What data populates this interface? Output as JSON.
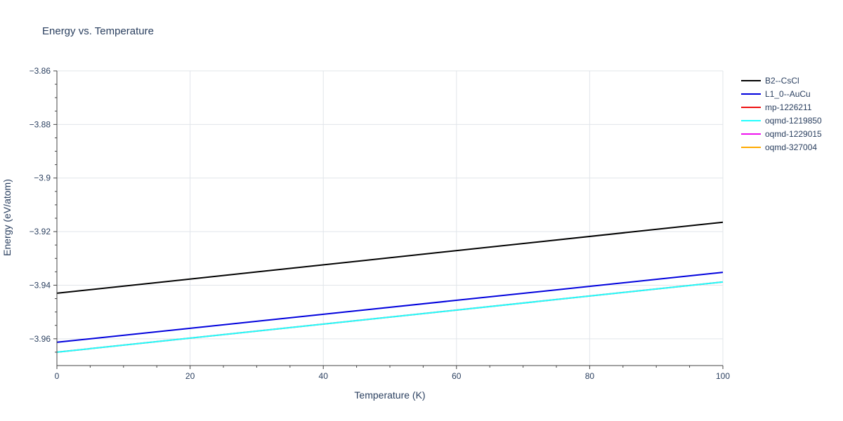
{
  "title": "Energy vs. Temperature",
  "chart_data": {
    "type": "line",
    "title": "Energy vs. Temperature",
    "xlabel": "Temperature (K)",
    "ylabel": "Energy (eV/atom)",
    "xlim": [
      0,
      100
    ],
    "ylim": [
      -3.97,
      -3.86
    ],
    "xticks": [
      0,
      20,
      40,
      60,
      80,
      100
    ],
    "xtick_labels": [
      "0",
      "20",
      "40",
      "60",
      "80",
      "100"
    ],
    "yticks": [
      -3.86,
      -3.88,
      -3.9,
      -3.92,
      -3.94,
      -3.96
    ],
    "ytick_labels": [
      "−3.86",
      "−3.88",
      "−3.9",
      "−3.92",
      "−3.94",
      "−3.96"
    ],
    "grid": true,
    "legend_position": "top-right, outside plot",
    "series": [
      {
        "name": "B2--CsCl",
        "color": "#000000",
        "x": [
          0,
          100
        ],
        "y": [
          -3.943,
          -3.9165
        ]
      },
      {
        "name": "L1_0--AuCu",
        "color": "#0000dd",
        "x": [
          0,
          100
        ],
        "y": [
          -3.9613,
          -3.9352
        ]
      },
      {
        "name": "mp-1226211",
        "color": "#ee1111",
        "x": [
          0,
          100
        ],
        "y": [
          -3.965,
          -3.9388
        ]
      },
      {
        "name": "oqmd-1219850",
        "color": "#22ffff",
        "x": [
          0,
          100
        ],
        "y": [
          -3.965,
          -3.9388
        ]
      },
      {
        "name": "oqmd-1229015",
        "color": "#ee11ee",
        "x": [],
        "y": []
      },
      {
        "name": "oqmd-327004",
        "color": "#ffaa00",
        "x": [],
        "y": []
      }
    ]
  }
}
